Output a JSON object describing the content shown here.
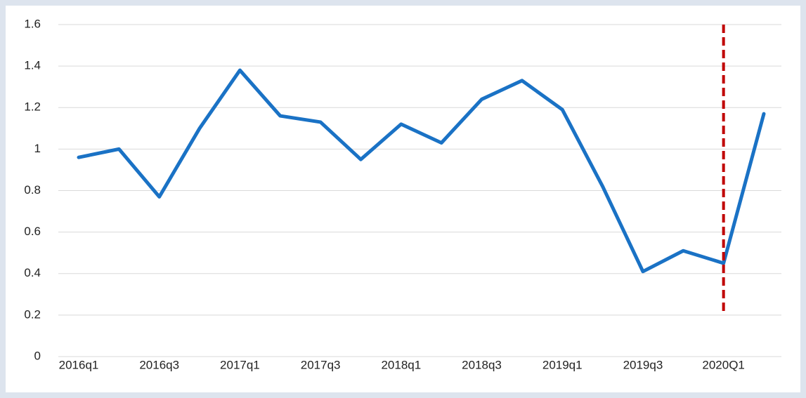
{
  "chart_data": {
    "type": "line",
    "categories": [
      "2016q1",
      null,
      "2016q3",
      null,
      "2017q1",
      null,
      "2017q3",
      null,
      "2018q1",
      null,
      "2018q3",
      null,
      "2019q1",
      null,
      "2019q3",
      null,
      "2020Q1",
      null
    ],
    "series": [
      {
        "color": "#1a72c5",
        "values": [
          0.96,
          1.0,
          0.77,
          1.1,
          1.38,
          1.16,
          1.13,
          0.95,
          1.12,
          1.03,
          1.24,
          1.33,
          1.19,
          0.82,
          0.41,
          0.51,
          0.45,
          1.17
        ]
      }
    ],
    "ylim": [
      0,
      1.6
    ],
    "yticks": [
      0,
      0.2,
      0.4,
      0.6,
      0.8,
      1,
      1.2,
      1.4,
      1.6
    ],
    "grid": true,
    "vline": {
      "category": "2020Q1",
      "range": [
        0.22,
        1.62
      ],
      "color": "#c00000"
    }
  }
}
